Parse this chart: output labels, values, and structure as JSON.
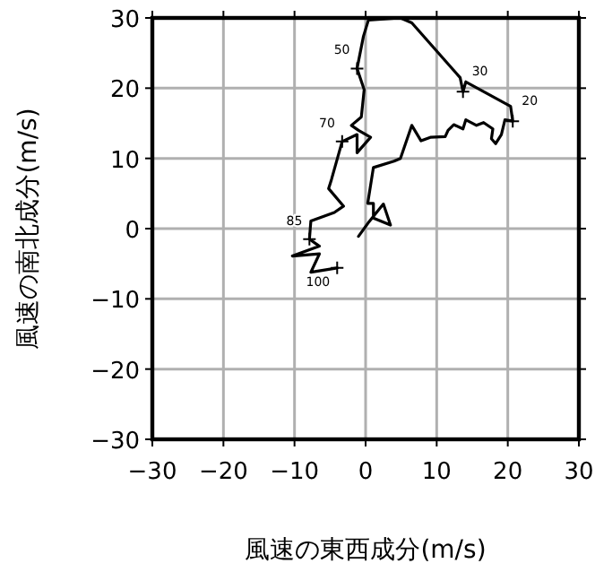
{
  "chart_data": {
    "type": "line",
    "xlabel": "風速の東西成分(m/s)",
    "ylabel": "風速の南北成分(m/s)",
    "xlim": [
      -30,
      30
    ],
    "ylim": [
      -30,
      30
    ],
    "xticks": [
      {
        "value": -30,
        "label": "−30"
      },
      {
        "value": -20,
        "label": "−20"
      },
      {
        "value": -10,
        "label": "−10"
      },
      0,
      10,
      20,
      30
    ],
    "yticks": [
      {
        "value": -30,
        "label": "−30"
      },
      {
        "value": -20,
        "label": "−20"
      },
      {
        "value": -10,
        "label": "−10"
      },
      0,
      10,
      20,
      30
    ],
    "grid": true,
    "marker": "none",
    "line_style": "solid",
    "series": [
      {
        "color": "#000000",
        "x": [
          -1,
          0.5,
          2.5,
          3.5,
          1.1,
          1.1,
          0.3,
          1.1,
          4,
          4.9,
          6.5,
          7.8,
          9.1,
          11.2,
          11.6,
          12.4,
          13.7,
          14.1,
          15.6,
          16.6,
          17.9,
          17.7,
          18.3,
          19.1,
          19.6,
          20.7,
          20.4,
          14.1,
          13.7,
          13.3,
          6.5,
          4.9,
          0.4,
          -0.3,
          -1.2,
          -0.2,
          -0.6,
          -2,
          -1,
          0.7,
          -1.2,
          -1.2,
          -3.3,
          -4.8,
          -5.2,
          -3.1,
          -4.4,
          -7.7,
          -7.9,
          -6.5,
          -10.3,
          -6.5,
          -7.7,
          -4
        ],
        "values": [
          -1.1,
          1,
          3.5,
          0.5,
          1.5,
          3.6,
          3.6,
          8.7,
          9.6,
          10,
          14.7,
          12.5,
          13,
          13.1,
          14,
          14.8,
          14.2,
          15.5,
          14.7,
          15.1,
          14.2,
          12.8,
          12.1,
          13.4,
          15.5,
          15.3,
          17.4,
          20.9,
          19.5,
          21.5,
          29.3,
          30,
          29.7,
          27.4,
          22.8,
          19.8,
          15.9,
          14.7,
          14,
          13,
          10.8,
          13.4,
          12.4,
          7,
          5.7,
          3.2,
          2.3,
          1.1,
          -1.5,
          -2.5,
          -3.9,
          -3.6,
          -6.2,
          -5.6
        ]
      }
    ],
    "annotations": [
      {
        "text": "20",
        "x": 20.7,
        "y": 15.3
      },
      {
        "text": "30",
        "x": 13.7,
        "y": 19.5
      },
      {
        "text": "50",
        "x": -1.2,
        "y": 22.8
      },
      {
        "text": "70",
        "x": -3.3,
        "y": 12.4
      },
      {
        "text": "85",
        "x": -7.9,
        "y": -1.5
      },
      {
        "text": "100",
        "x": -4,
        "y": -5.6
      }
    ]
  }
}
